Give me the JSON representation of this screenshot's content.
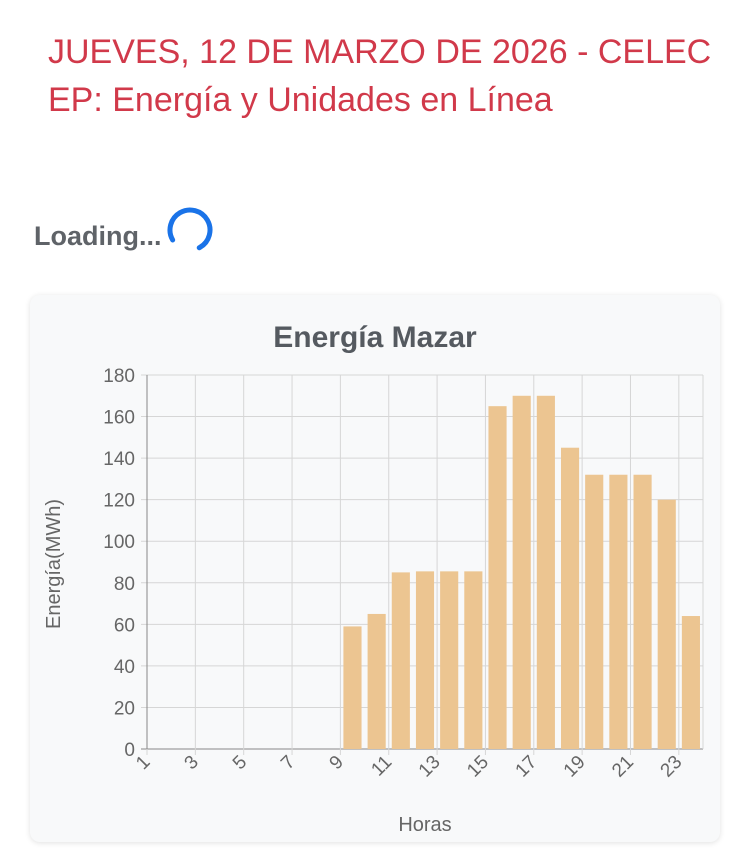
{
  "header": {
    "title": "JUEVES, 12 DE MARZO DE 2026 - CELEC EP: Energía y Unidades en Línea"
  },
  "status": {
    "loading_text": "Loading...",
    "spinner_icon": "loading-spinner-icon",
    "spinner_color": "#1a73e8"
  },
  "chart_data": {
    "type": "bar",
    "title": "Energía Mazar",
    "xlabel": "Horas",
    "ylabel": "Energía(MWh)",
    "ylim": [
      0,
      180
    ],
    "yticks": [
      0,
      20,
      40,
      60,
      80,
      100,
      120,
      140,
      160,
      180
    ],
    "categories": [
      "1",
      "2",
      "3",
      "4",
      "5",
      "6",
      "7",
      "8",
      "9",
      "10",
      "11",
      "12",
      "13",
      "14",
      "15",
      "16",
      "17",
      "18",
      "19",
      "20",
      "21",
      "22",
      "23"
    ],
    "xtick_labels": [
      "1",
      "3",
      "5",
      "7",
      "9",
      "11",
      "13",
      "15",
      "17",
      "19",
      "21",
      "23"
    ],
    "values": [
      0,
      0,
      0,
      0,
      0,
      0,
      0,
      0,
      59,
      65,
      85,
      85.5,
      85.5,
      85.5,
      165,
      170,
      170,
      145,
      132,
      132,
      132,
      120,
      64
    ],
    "bar_color": "#ecc591",
    "grid": true,
    "legend": "none"
  }
}
